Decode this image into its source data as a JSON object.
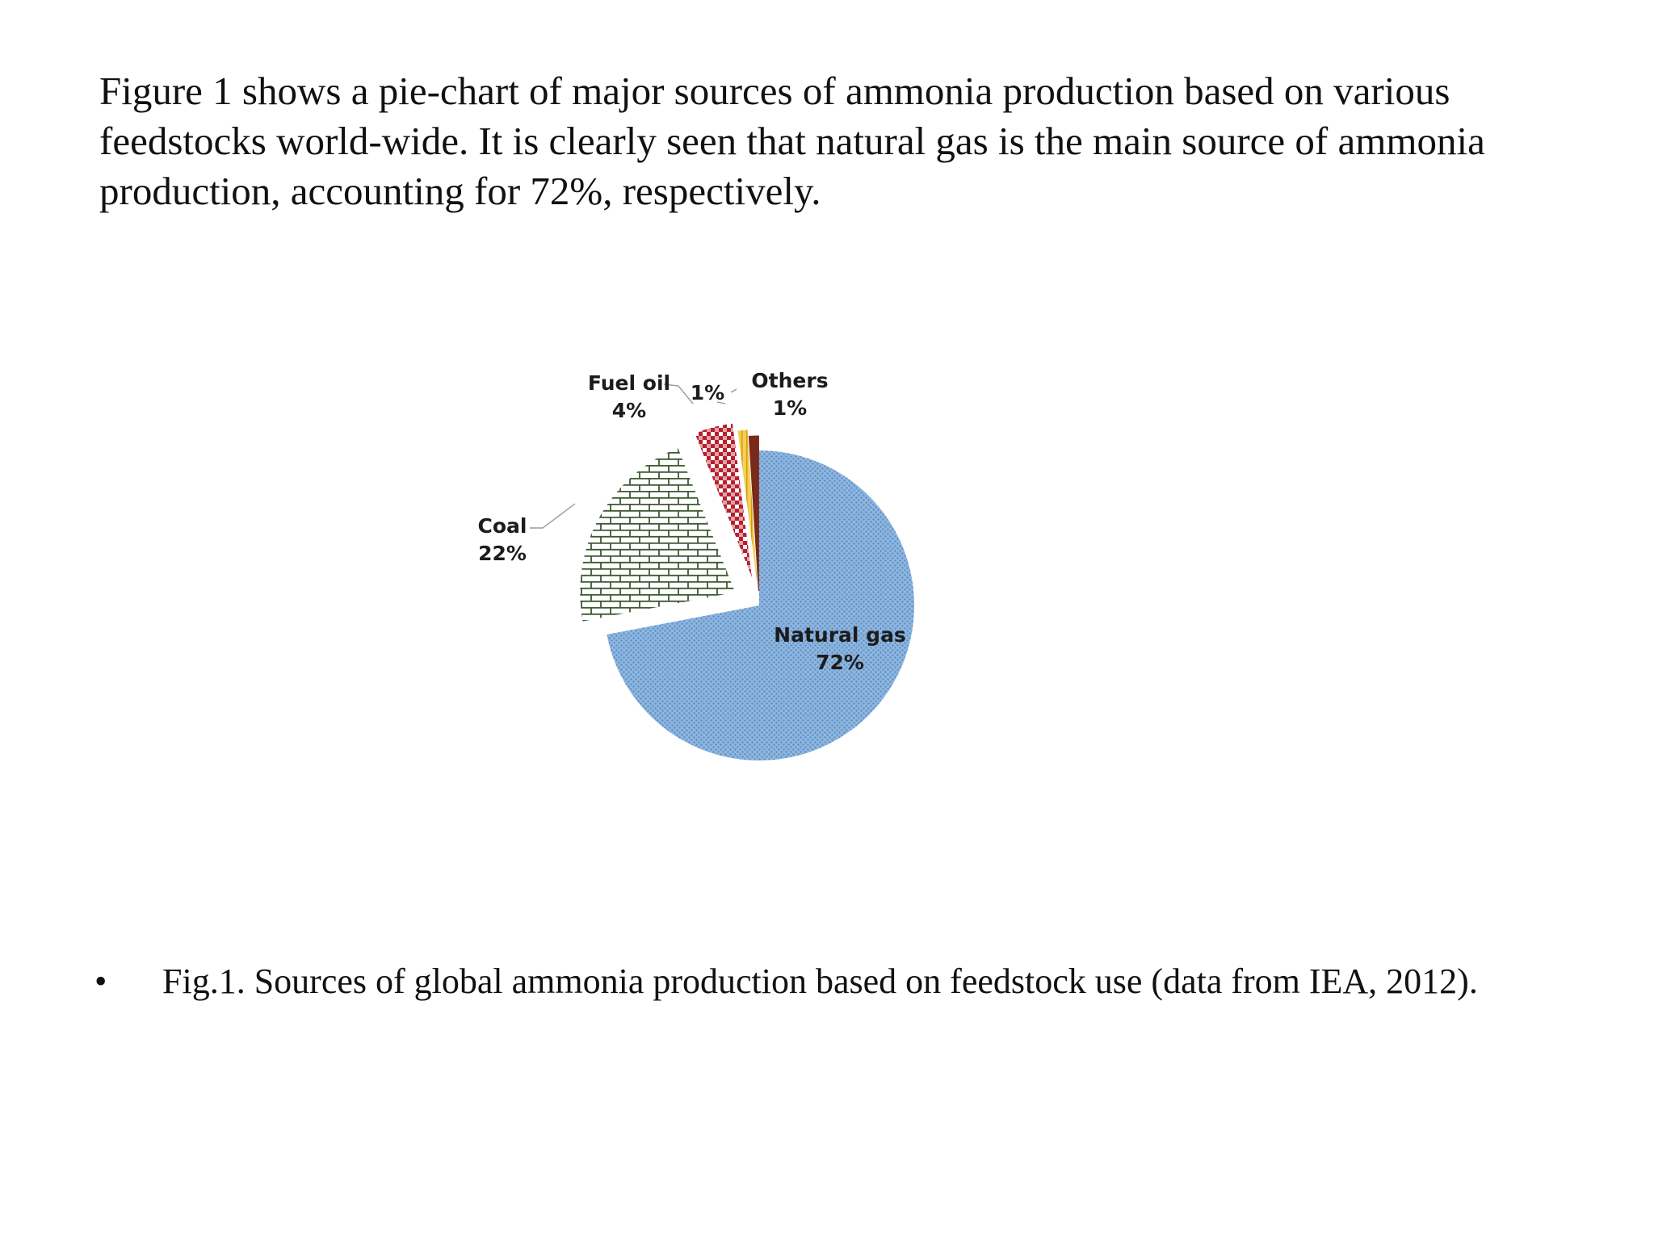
{
  "intro_text": "Figure 1 shows a pie-chart of major sources of ammonia production based on various feedstocks world-wide. It is clearly seen that natural gas is the main source of ammonia production, accounting for 72%, respectively.",
  "caption": {
    "bullet": "•",
    "text": "Fig.1. Sources of global ammonia production based on feedstock use (data from IEA, 2012)."
  },
  "chart_data": {
    "type": "pie",
    "title": "",
    "slices": [
      {
        "name": "Natural gas",
        "value": 72,
        "label": "72%",
        "color": "#6f9fd0",
        "pattern": "dots"
      },
      {
        "name": "Coal",
        "value": 22,
        "label": "22%",
        "color": "#3d5a32",
        "pattern": "bricks"
      },
      {
        "name": "Fuel oil",
        "value": 4,
        "label": "4%",
        "color": "#b5202e",
        "pattern": "checks"
      },
      {
        "name": "",
        "value": 1,
        "label": "1%",
        "color": "#e0ae1c",
        "pattern": "stripes"
      },
      {
        "name": "Others",
        "value": 1,
        "label": "1%",
        "color": "#7a2a1a",
        "pattern": "solid"
      }
    ]
  }
}
